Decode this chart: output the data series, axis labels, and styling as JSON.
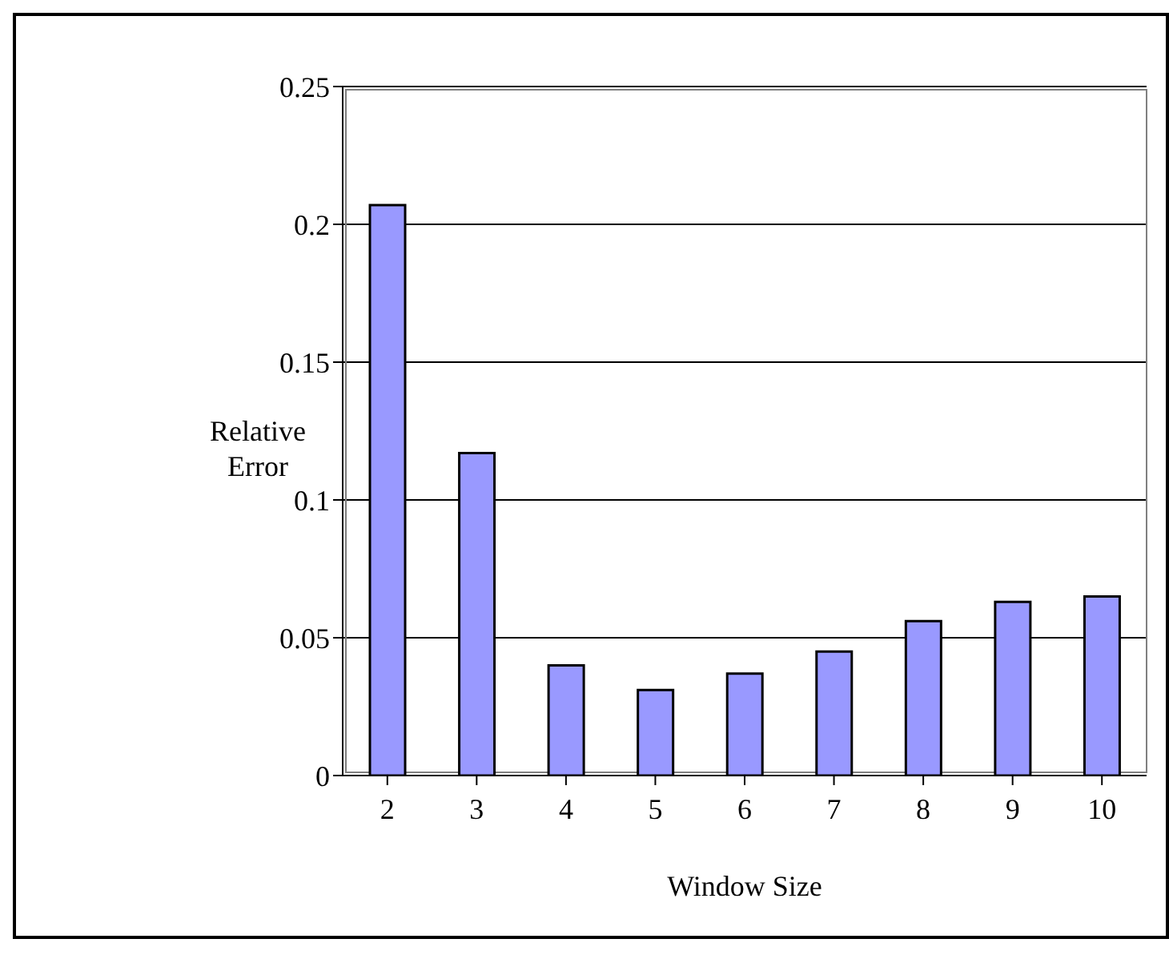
{
  "chart_data": {
    "type": "bar",
    "xlabel": "Window Size",
    "ylabel": "Relative Error",
    "categories": [
      "2",
      "3",
      "4",
      "5",
      "6",
      "7",
      "8",
      "9",
      "10"
    ],
    "values": [
      0.207,
      0.117,
      0.04,
      0.031,
      0.037,
      0.045,
      0.056,
      0.063,
      0.065
    ],
    "color": "#9999ff",
    "ylim": [
      0,
      0.25
    ],
    "yticks": [
      0,
      0.05,
      0.1,
      0.15,
      0.2,
      0.25
    ],
    "grid": "y"
  }
}
